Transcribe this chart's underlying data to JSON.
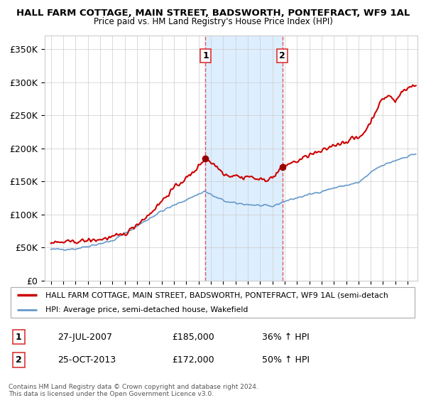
{
  "title1": "HALL FARM COTTAGE, MAIN STREET, BADSWORTH, PONTEFRACT, WF9 1AL",
  "title2": "Price paid vs. HM Land Registry's House Price Index (HPI)",
  "ylabel_ticks": [
    "£0",
    "£50K",
    "£100K",
    "£150K",
    "£200K",
    "£250K",
    "£300K",
    "£350K"
  ],
  "ytick_vals": [
    0,
    50000,
    100000,
    150000,
    200000,
    250000,
    300000,
    350000
  ],
  "ylim": [
    0,
    370000
  ],
  "xlim_start": 1994.5,
  "xlim_end": 2024.8,
  "red_color": "#cc0000",
  "blue_color": "#6699cc",
  "shaded_color": "#ddeeff",
  "vline_color": "#dd3333",
  "marker_color": "#990000",
  "transaction1_x": 2007.57,
  "transaction1_y": 185000,
  "transaction2_x": 2013.81,
  "transaction2_y": 172000,
  "legend1": "HALL FARM COTTAGE, MAIN STREET, BADSWORTH, PONTEFRACT, WF9 1AL (semi-detach",
  "legend2": "HPI: Average price, semi-detached house, Wakefield",
  "ann1_label": "1",
  "ann1_date": "27-JUL-2007",
  "ann1_price": "£185,000",
  "ann1_hpi": "36% ↑ HPI",
  "ann2_label": "2",
  "ann2_date": "25-OCT-2013",
  "ann2_price": "£172,000",
  "ann2_hpi": "50% ↑ HPI",
  "footer": "Contains HM Land Registry data © Crown copyright and database right 2024.\nThis data is licensed under the Open Government Licence v3.0."
}
